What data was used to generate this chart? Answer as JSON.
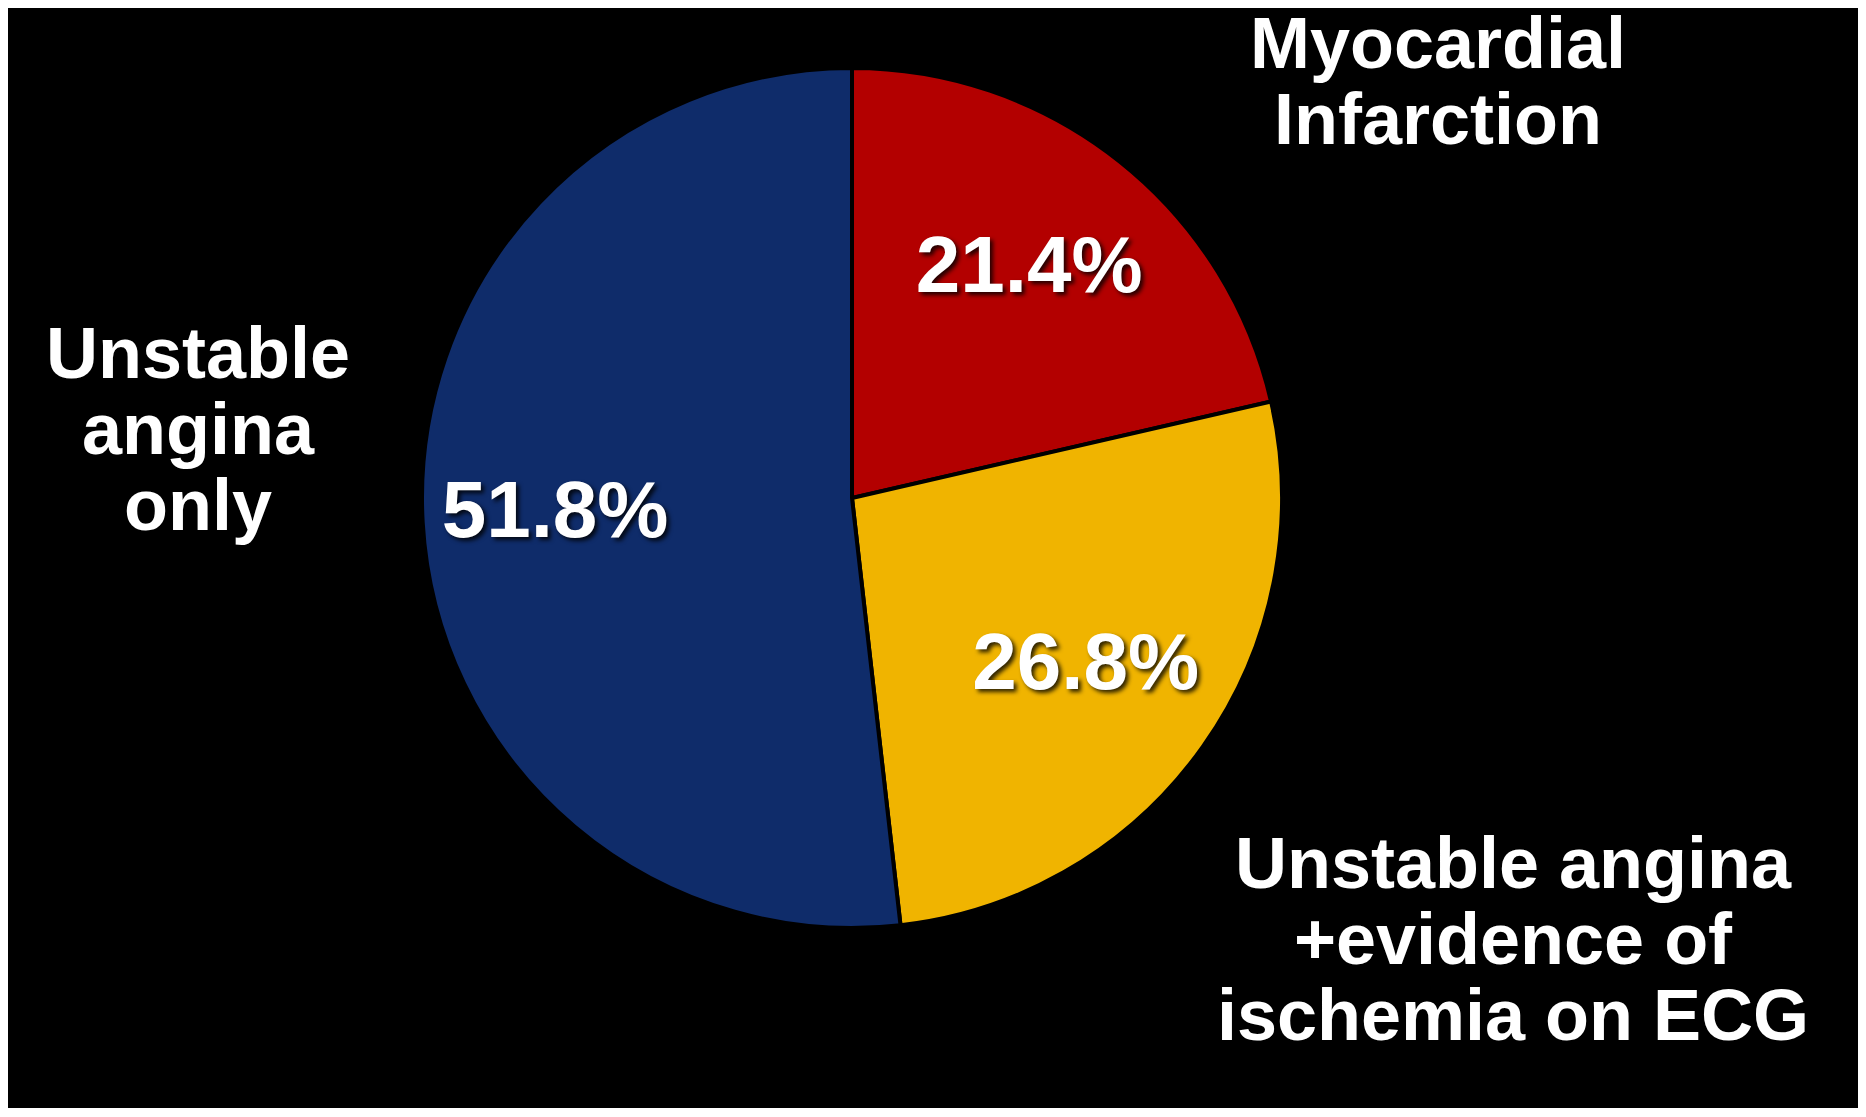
{
  "chart_data": {
    "type": "pie",
    "categories": [
      "Myocardial\nInfarction",
      "Unstable angina\n+evidence of\nischemia on ECG",
      "Unstable\nangina\nonly"
    ],
    "values": [
      21.4,
      26.8,
      51.8
    ],
    "value_labels": [
      "21.4%",
      "26.8%",
      "51.8%"
    ],
    "colors": [
      "#b30000",
      "#f0b400",
      "#0f2c6a"
    ]
  }
}
